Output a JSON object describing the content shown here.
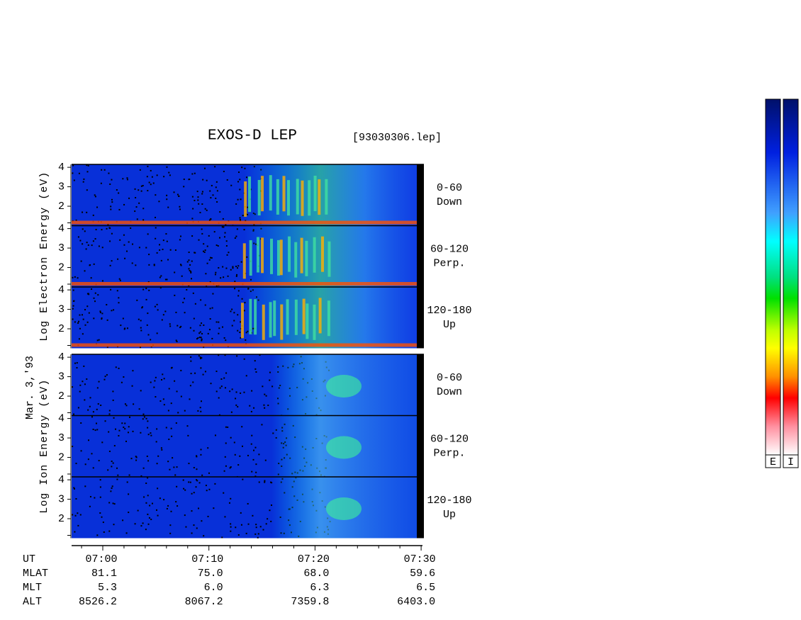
{
  "header": {
    "title": "EXOS-D LEP",
    "file": "[93030306.lep]"
  },
  "date": "Mar. 3,'93",
  "groups": [
    {
      "label": "Log Electron Energy (eV)",
      "panels": [
        {
          "angle": "0-60",
          "direction": "Down",
          "yticks": [
            2,
            3,
            4
          ],
          "ylim": [
            1,
            4.15
          ]
        },
        {
          "angle": "60-120",
          "direction": "Perp.",
          "yticks": [
            2,
            3,
            4
          ],
          "ylim": [
            1,
            4.15
          ]
        },
        {
          "angle": "120-180",
          "direction": "Up",
          "yticks": [
            2,
            3,
            4
          ],
          "ylim": [
            1,
            4.15
          ]
        }
      ]
    },
    {
      "label": "Log Ion Energy (eV)",
      "panels": [
        {
          "angle": "0-60",
          "direction": "Down",
          "yticks": [
            2,
            3,
            4
          ],
          "ylim": [
            1,
            4.15
          ]
        },
        {
          "angle": "60-120",
          "direction": "Perp.",
          "yticks": [
            2,
            3,
            4
          ],
          "ylim": [
            1,
            4.15
          ]
        },
        {
          "angle": "120-180",
          "direction": "Up",
          "yticks": [
            2,
            3,
            4
          ],
          "ylim": [
            1,
            4.15
          ]
        }
      ]
    }
  ],
  "ephemeris": {
    "rows": [
      "UT",
      "MLAT",
      "MLT",
      "ALT"
    ],
    "columns": [
      [
        "07:00",
        "81.1",
        "5.3",
        "8526.2"
      ],
      [
        "07:10",
        "75.0",
        "6.0",
        "8067.2"
      ],
      [
        "07:20",
        "68.0",
        "6.3",
        "7359.8"
      ],
      [
        "07:30",
        "59.6",
        "6.5",
        "6403.0"
      ]
    ]
  },
  "colorbars": [
    "E",
    "I"
  ]
}
